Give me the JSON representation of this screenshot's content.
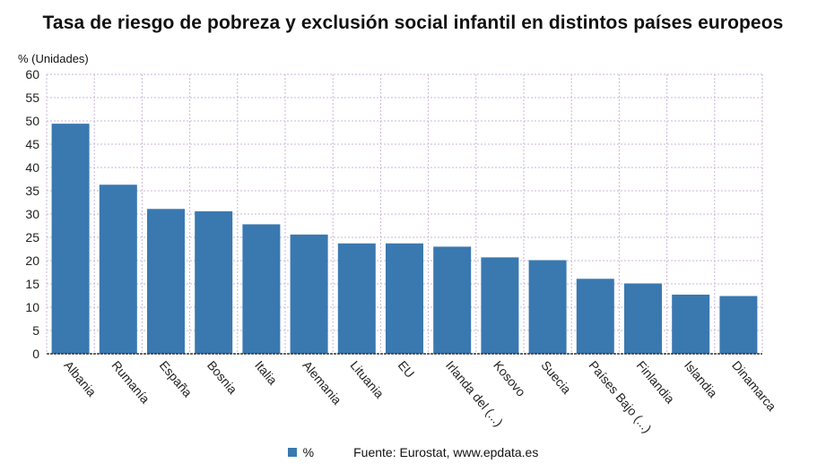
{
  "chart_data": {
    "type": "bar",
    "title": "Tasa de riesgo de pobreza y exclusión social infantil en distintos países europeos",
    "ylabel": "% (Unidades)",
    "categories": [
      "Albania",
      "Rumanía",
      "España",
      "Bosnia",
      "Italia",
      "Alemania",
      "Lituania",
      "EU",
      "Irlanda del (...)",
      "Kosovo",
      "Suecia",
      "Países Bajo (...)",
      "Finlandia",
      "Islandia",
      "Dinamarca"
    ],
    "series": [
      {
        "name": "%",
        "values": [
          49.4,
          36.3,
          31.1,
          30.6,
          27.8,
          25.6,
          23.7,
          23.7,
          23.0,
          20.7,
          20.1,
          16.1,
          15.1,
          12.7,
          12.4
        ]
      }
    ],
    "ylim": [
      0,
      60
    ],
    "yticks": [
      0,
      5,
      10,
      15,
      20,
      25,
      30,
      35,
      40,
      45,
      50,
      55,
      60
    ],
    "grid": true,
    "legend_position": "bottom",
    "bar_color": "#3a78b0",
    "grid_color": "#c9b6d9"
  },
  "footer": {
    "source": "Fuente: Eurostat, www.epdata.es"
  }
}
